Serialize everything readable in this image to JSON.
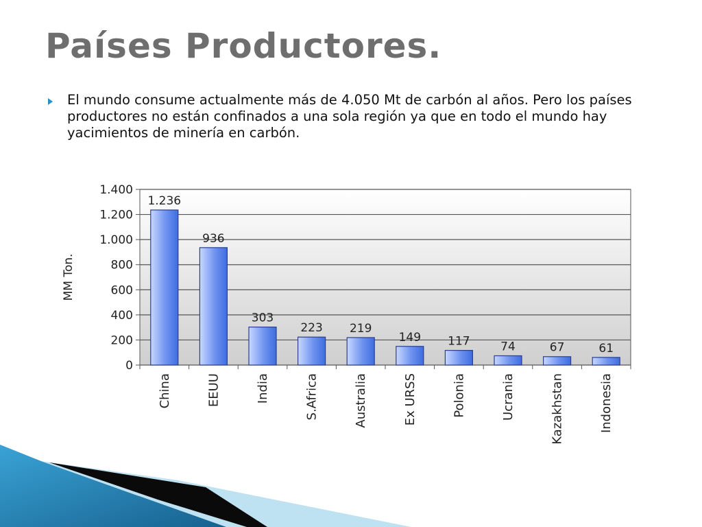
{
  "slide": {
    "title": "Países Productores.",
    "bullet_text": "El mundo consume actualmente más de 4.050 Mt de carbón al años. Pero los países productores no están confinados a una sola región ya que en todo el mundo hay yacimientos de minería en carbón.",
    "bullet_icon": "triangle-bullet-icon"
  },
  "colors": {
    "title": "#6e6e6e",
    "bullet_accent": "#2e8fbf",
    "bar_top": "#c8d8ff",
    "bar_bottom": "#3f6de0",
    "decor_blue": "#1f7fae"
  },
  "chart_data": {
    "type": "bar",
    "categories": [
      "China",
      "EEUU",
      "India",
      "S.Africa",
      "Australia",
      "Ex URSS",
      "Polonia",
      "Ucrania",
      "Kazakhstan",
      "Indonesia"
    ],
    "values": [
      1236,
      936,
      303,
      223,
      219,
      149,
      117,
      74,
      67,
      61
    ],
    "value_labels": [
      "1.236",
      "936",
      "303",
      "223",
      "219",
      "149",
      "117",
      "74",
      "67",
      "61"
    ],
    "title": "",
    "xlabel": "",
    "ylabel": "MM Ton.",
    "ylim": [
      0,
      1400
    ],
    "yticks": [
      0,
      200,
      400,
      600,
      800,
      1000,
      1200,
      1400
    ],
    "ytick_labels": [
      "0",
      "200",
      "400",
      "600",
      "800",
      "1.000",
      "1.200",
      "1.400"
    ],
    "grid": true,
    "legend": "none"
  }
}
